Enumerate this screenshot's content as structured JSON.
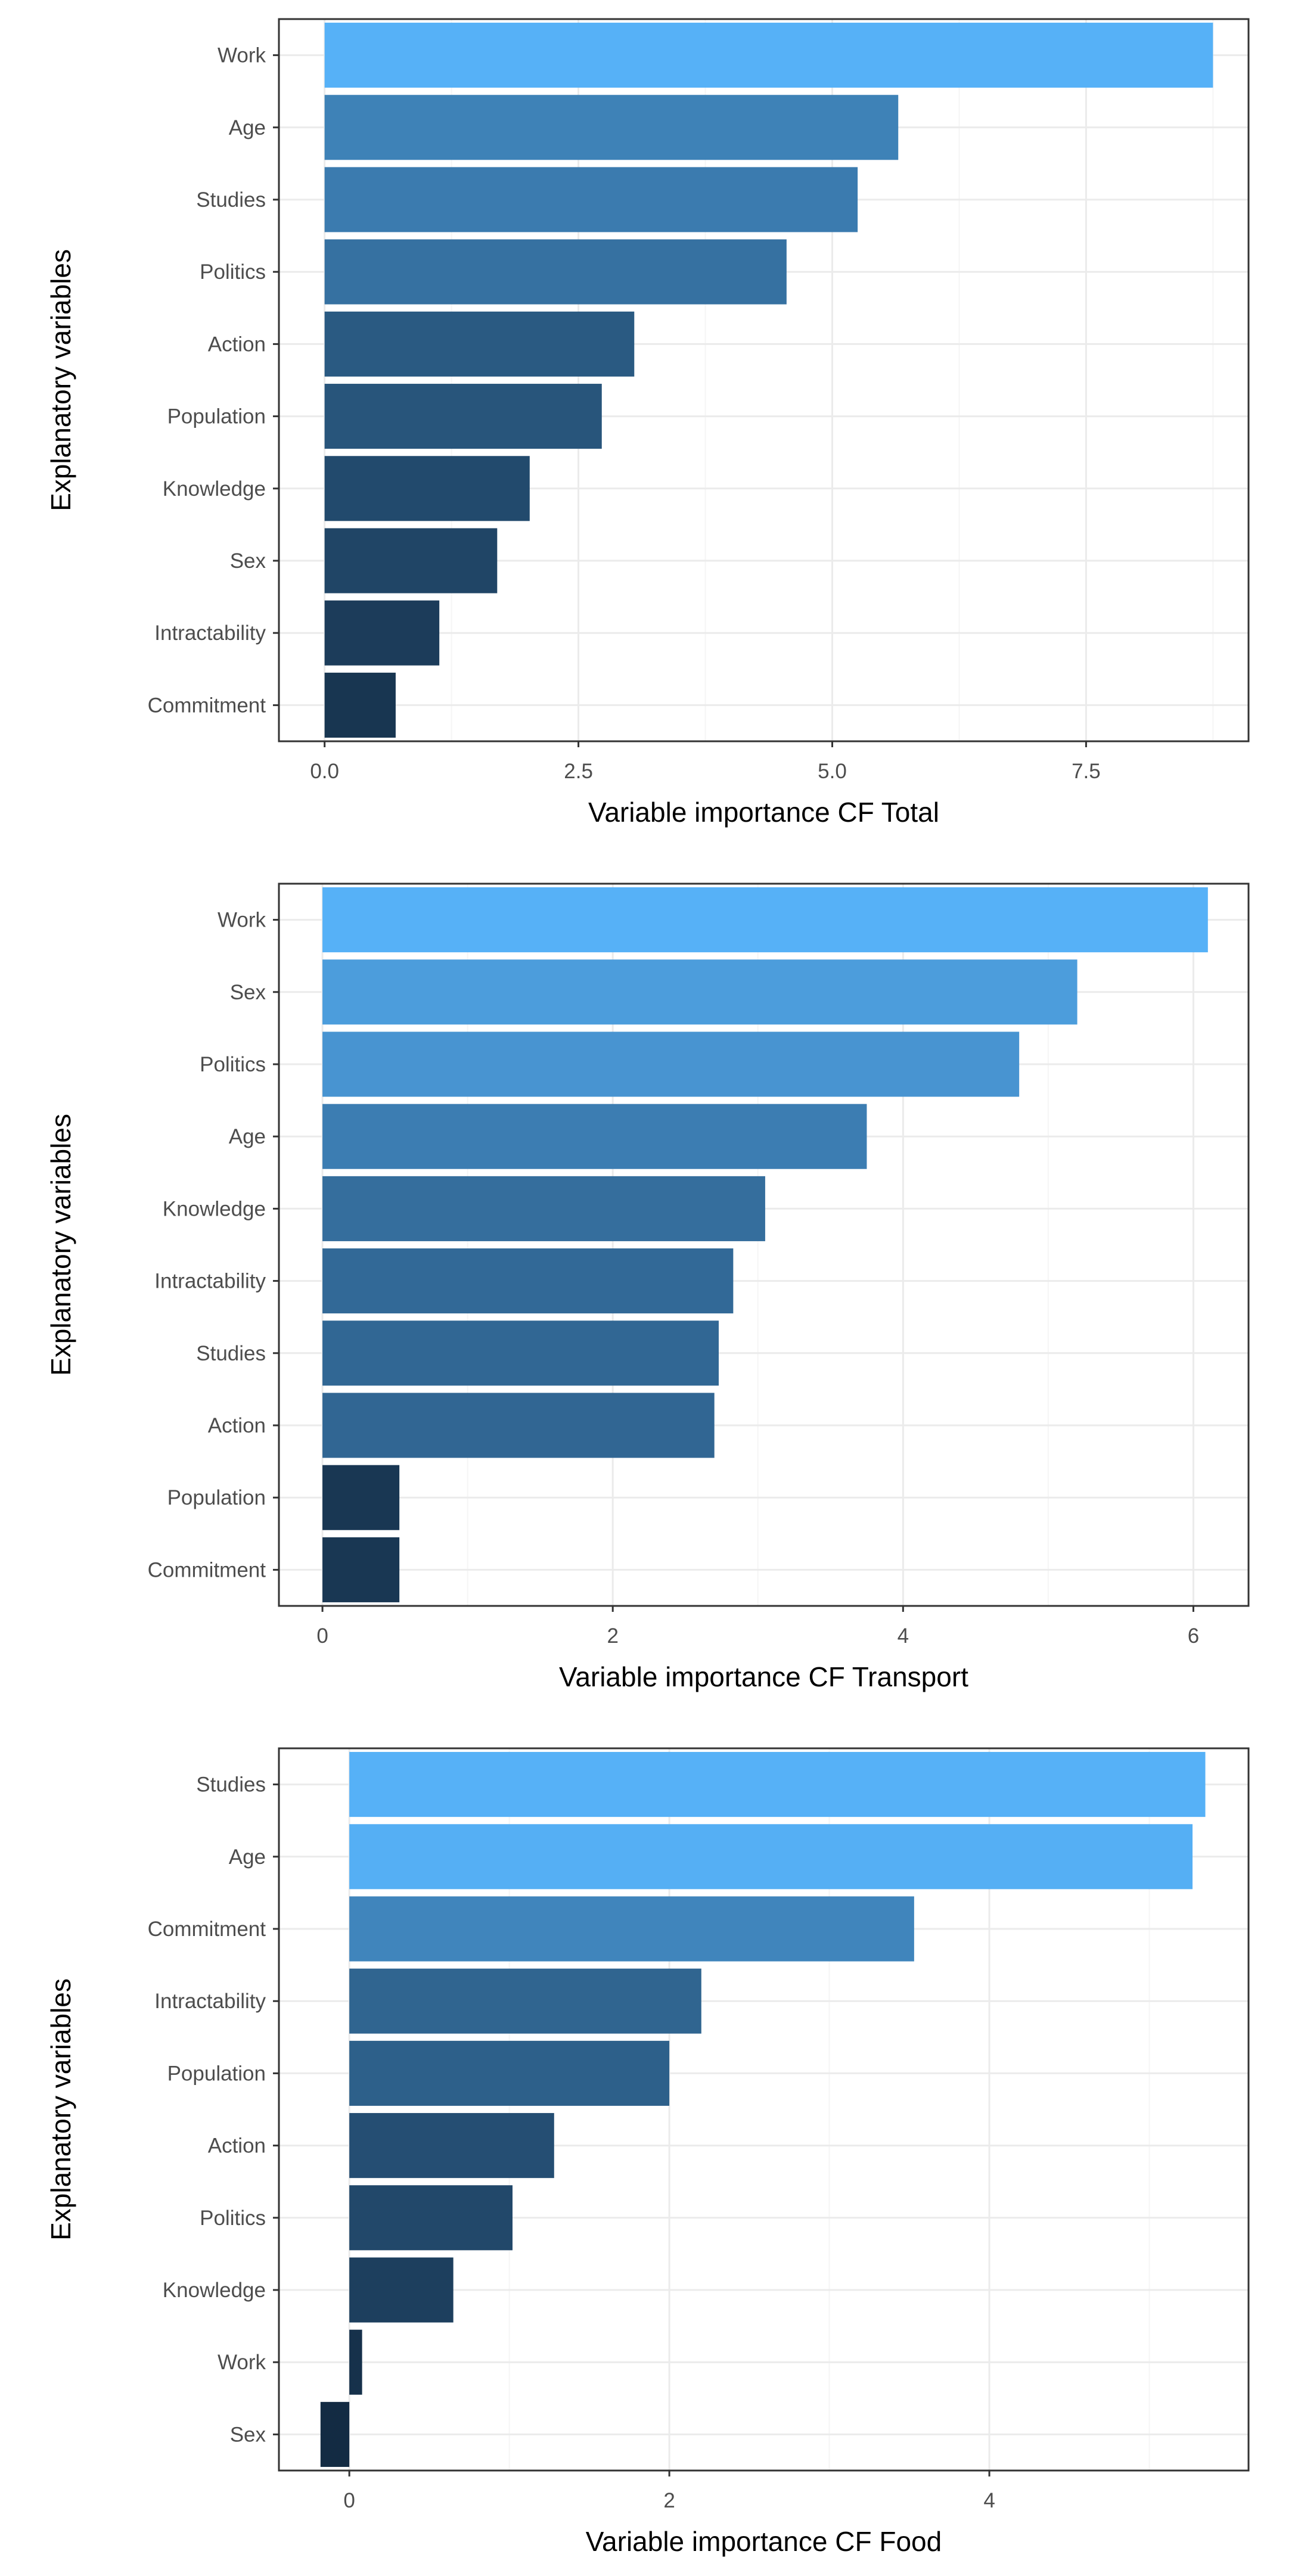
{
  "chart_data": [
    {
      "type": "bar",
      "orientation": "horizontal",
      "xlabel": "Variable importance CF Total",
      "ylabel": "Explanatory variables",
      "categories": [
        "Work",
        "Age",
        "Studies",
        "Politics",
        "Action",
        "Population",
        "Knowledge",
        "Sex",
        "Intractability",
        "Commitment"
      ],
      "values": [
        8.75,
        5.65,
        5.25,
        4.55,
        3.05,
        2.73,
        2.02,
        1.7,
        1.13,
        0.7
      ],
      "xticks": [
        0,
        2.5,
        5,
        7.5
      ],
      "xtick_labels": [
        "0.0",
        "2.5",
        "5.0",
        "7.5"
      ],
      "xlim": [
        -0.45,
        9.1
      ],
      "grid": true,
      "color_low": "#132b43",
      "color_high": "#56b1f7"
    },
    {
      "type": "bar",
      "orientation": "horizontal",
      "xlabel": "Variable importance CF Transport",
      "ylabel": "Explanatory variables",
      "categories": [
        "Work",
        "Sex",
        "Politics",
        "Age",
        "Knowledge",
        "Intractability",
        "Studies",
        "Action",
        "Population",
        "Commitment"
      ],
      "values": [
        6.1,
        5.2,
        4.8,
        3.75,
        3.05,
        2.83,
        2.73,
        2.7,
        0.53,
        0.53
      ],
      "xticks": [
        0,
        2,
        4,
        6
      ],
      "xtick_labels": [
        "0",
        "2",
        "4",
        "6"
      ],
      "xlim": [
        -0.3,
        6.38
      ],
      "grid": true,
      "color_low": "#132b43",
      "color_high": "#56b1f7"
    },
    {
      "type": "bar",
      "orientation": "horizontal",
      "xlabel": "Variable importance CF Food",
      "ylabel": "Explanatory variables",
      "categories": [
        "Studies",
        "Age",
        "Commitment",
        "Intractability",
        "Population",
        "Action",
        "Politics",
        "Knowledge",
        "Work",
        "Sex"
      ],
      "values": [
        5.35,
        5.27,
        3.53,
        2.2,
        2.0,
        1.28,
        1.02,
        0.65,
        0.08,
        -0.18
      ],
      "xticks": [
        0,
        2,
        4
      ],
      "xtick_labels": [
        "0",
        "2",
        "4"
      ],
      "xlim": [
        -0.44,
        5.62
      ],
      "grid": true,
      "color_low": "#132b43",
      "color_high": "#56b1f7"
    }
  ]
}
